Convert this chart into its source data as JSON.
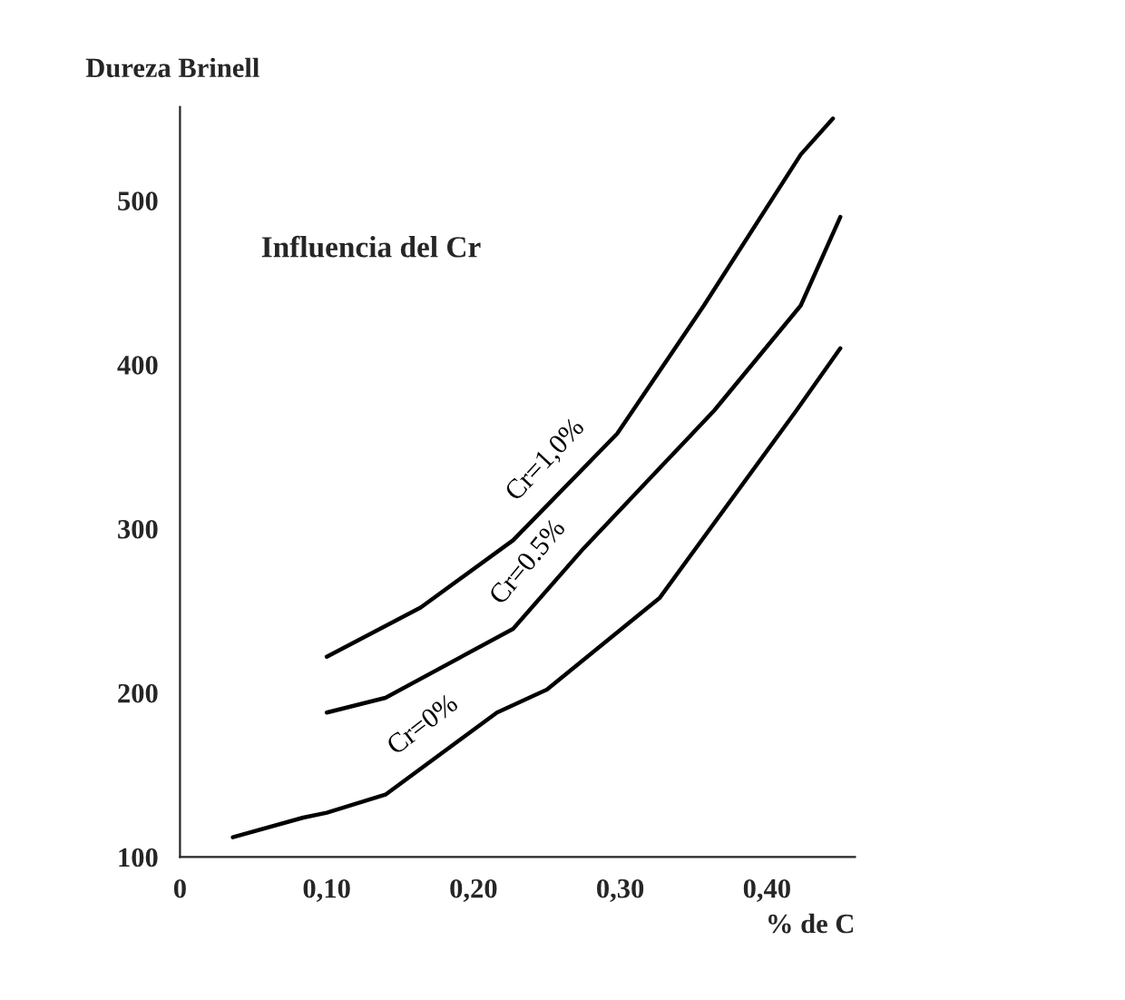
{
  "chart_data": {
    "type": "line",
    "xlabel": "% de C",
    "ylabel": "Dureza Brinell",
    "annotations": [
      "Influencia del Cr"
    ],
    "xlim": [
      0,
      0.46
    ],
    "ylim": [
      100,
      557
    ],
    "xticks": [
      {
        "value": 0,
        "label": "0"
      },
      {
        "value": 0.1,
        "label": "0,10"
      },
      {
        "value": 0.2,
        "label": "0,20"
      },
      {
        "value": 0.3,
        "label": "0,30"
      },
      {
        "value": 0.4,
        "label": "0,40"
      }
    ],
    "yticks": [
      100,
      200,
      300,
      400,
      500
    ],
    "grid": false,
    "legend": false,
    "marker": "none",
    "line_style": "solid",
    "series": [
      {
        "name": "Cr=1,0%",
        "color": "#000000",
        "x": [
          0.1,
          0.164,
          0.227,
          0.298,
          0.357,
          0.423,
          0.445
        ],
        "values": [
          222,
          252,
          293,
          358,
          436,
          528,
          550
        ]
      },
      {
        "name": "Cr=0.5%",
        "color": "#000000",
        "x": [
          0.1,
          0.14,
          0.227,
          0.275,
          0.364,
          0.423,
          0.45
        ],
        "values": [
          188,
          197,
          239,
          288,
          372,
          436,
          490
        ]
      },
      {
        "name": "Cr=0%",
        "color": "#000000",
        "x": [
          0.036,
          0.084,
          0.1,
          0.14,
          0.216,
          0.25,
          0.327,
          0.42,
          0.45
        ],
        "values": [
          112,
          124,
          127,
          138,
          188,
          202,
          258,
          372,
          410
        ]
      }
    ]
  }
}
